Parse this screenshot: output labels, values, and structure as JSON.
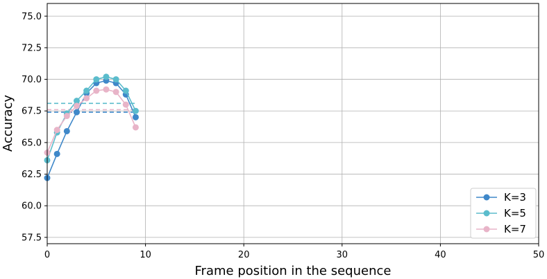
{
  "chart_data": {
    "type": "line",
    "xlabel": "Frame position in the sequence",
    "ylabel": "Accuracy",
    "xlim": [
      0,
      50
    ],
    "ylim": [
      57,
      76
    ],
    "xticks": [
      "0",
      "10",
      "20",
      "30",
      "40",
      "50"
    ],
    "yticks": [
      "57.5",
      "60.0",
      "62.5",
      "65.0",
      "67.5",
      "70.0",
      "72.5",
      "75.0"
    ],
    "grid": true,
    "legend_position": "bottom-right",
    "x": [
      0,
      1,
      2,
      3,
      4,
      5,
      6,
      7,
      8,
      9
    ],
    "series": [
      {
        "name": "K=3",
        "color": "#3f88c9",
        "values": [
          62.2,
          64.1,
          65.9,
          67.4,
          68.9,
          69.7,
          69.9,
          69.7,
          68.8,
          67.0
        ],
        "reference": 67.4
      },
      {
        "name": "K=5",
        "color": "#5bbccc",
        "values": [
          63.6,
          65.8,
          67.3,
          68.3,
          69.1,
          70.0,
          70.2,
          70.0,
          69.1,
          67.5
        ],
        "reference": 68.1
      },
      {
        "name": "K=7",
        "color": "#e8b4c8",
        "values": [
          64.2,
          66.0,
          67.1,
          67.9,
          68.5,
          69.1,
          69.2,
          69.0,
          68.0,
          66.2
        ],
        "reference": 67.6
      }
    ]
  }
}
